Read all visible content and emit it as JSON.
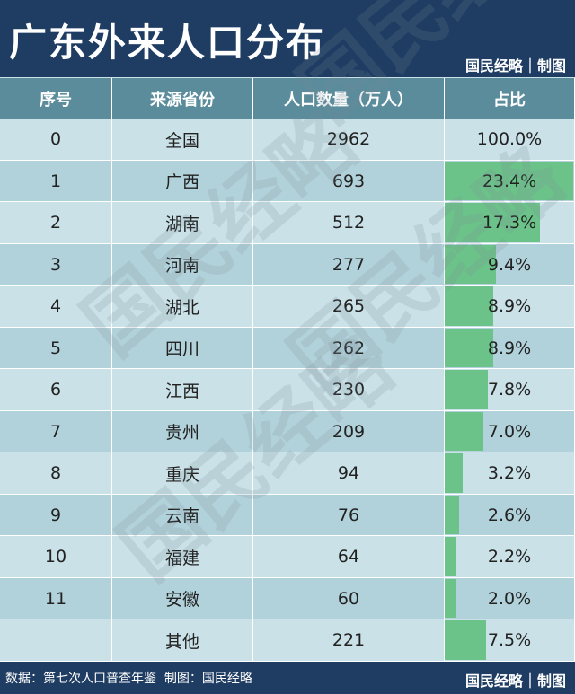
{
  "header": {
    "title": "广东外来人口分布",
    "credit": "国民经略｜制图"
  },
  "table": {
    "columns": [
      "序号",
      "来源省份",
      "人口数量（万人）",
      "占比"
    ],
    "total": {
      "no": "0",
      "province": "全国",
      "population": 2962,
      "share": {
        "value": 100.0,
        "label": "100.0%"
      }
    },
    "rows": [
      {
        "no": "1",
        "province": "广西",
        "population": 693,
        "share": {
          "value": 23.4,
          "label": "23.4%"
        }
      },
      {
        "no": "2",
        "province": "湖南",
        "population": 512,
        "share": {
          "value": 17.3,
          "label": "17.3%"
        }
      },
      {
        "no": "3",
        "province": "河南",
        "population": 277,
        "share": {
          "value": 9.4,
          "label": "9.4%"
        }
      },
      {
        "no": "4",
        "province": "湖北",
        "population": 265,
        "share": {
          "value": 8.9,
          "label": "8.9%"
        }
      },
      {
        "no": "5",
        "province": "四川",
        "population": 262,
        "share": {
          "value": 8.9,
          "label": "8.9%"
        }
      },
      {
        "no": "6",
        "province": "江西",
        "population": 230,
        "share": {
          "value": 7.8,
          "label": "7.8%"
        }
      },
      {
        "no": "7",
        "province": "贵州",
        "population": 209,
        "share": {
          "value": 7.0,
          "label": "7.0%"
        }
      },
      {
        "no": "8",
        "province": "重庆",
        "population": 94,
        "share": {
          "value": 3.2,
          "label": "3.2%"
        }
      },
      {
        "no": "9",
        "province": "云南",
        "population": 76,
        "share": {
          "value": 2.6,
          "label": "2.6%"
        }
      },
      {
        "no": "10",
        "province": "福建",
        "population": 64,
        "share": {
          "value": 2.2,
          "label": "2.2%"
        }
      },
      {
        "no": "11",
        "province": "安徽",
        "population": 60,
        "share": {
          "value": 2.0,
          "label": "2.0%"
        }
      },
      {
        "no": null,
        "province": "其他",
        "population": 221,
        "share": {
          "value": 7.5,
          "label": "7.5%"
        }
      }
    ]
  },
  "watermark": "国民经略",
  "footer": {
    "source": "数据：第七次人口普查年鉴  制图：国民经略",
    "credit": "国民经略｜制图"
  }
}
